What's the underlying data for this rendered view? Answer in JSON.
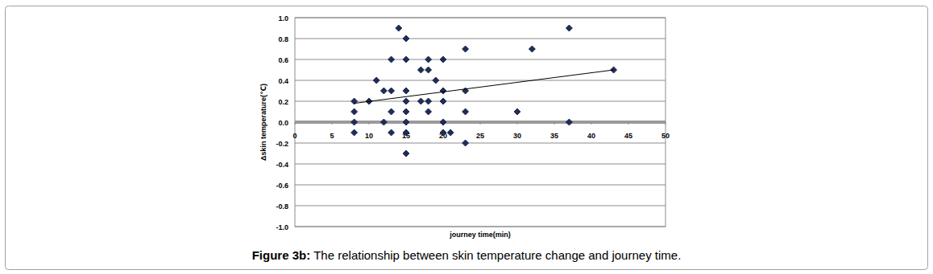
{
  "chart_data": {
    "type": "scatter",
    "figure_label": "Figure 3b:",
    "title": "The relationship between skin temperature change and journey time.",
    "x_label": "journey time(min)",
    "y_label": "Δskin temperature(℃)",
    "xlim": [
      0,
      50
    ],
    "xticks": [
      0,
      5,
      10,
      15,
      20,
      25,
      30,
      35,
      40,
      45,
      50
    ],
    "ylim": [
      -1,
      1
    ],
    "yticks": [
      {
        "value": -1,
        "label": "-1.0"
      },
      -0.8,
      -0.6,
      -0.4,
      -0.2,
      {
        "value": 0,
        "label": "0.0"
      },
      0.2,
      0.4,
      0.6,
      0.8,
      {
        "value": 1,
        "label": "1.0"
      }
    ],
    "grid": true,
    "series": [
      {
        "type": "scatter",
        "color": "#1f2d5a",
        "marker": "diamond",
        "x": [
          8,
          8,
          8,
          8,
          10,
          11,
          12,
          12,
          13,
          13,
          13,
          13,
          14,
          15,
          15,
          15,
          15,
          15,
          15,
          15,
          15,
          17,
          17,
          18,
          18,
          18,
          18,
          19,
          20,
          20,
          20,
          20,
          20,
          21,
          23,
          23,
          23,
          23,
          30,
          32,
          37,
          37,
          43
        ],
        "values": [
          0.2,
          0.1,
          0.0,
          -0.1,
          0.2,
          0.4,
          0.3,
          0.0,
          0.6,
          0.3,
          0.1,
          -0.1,
          0.9,
          0.8,
          0.6,
          0.3,
          0.2,
          0.1,
          0.0,
          -0.1,
          -0.3,
          0.5,
          0.2,
          0.6,
          0.5,
          0.2,
          0.1,
          0.4,
          0.6,
          0.3,
          0.2,
          0.0,
          -0.1,
          -0.1,
          0.7,
          0.3,
          0.1,
          -0.2,
          0.1,
          0.7,
          0.9,
          0.0,
          0.5
        ]
      },
      {
        "type": "line",
        "color": "#000000",
        "line_style": "solid",
        "x": [
          8,
          43
        ],
        "values": [
          0.18,
          0.5
        ]
      }
    ]
  }
}
